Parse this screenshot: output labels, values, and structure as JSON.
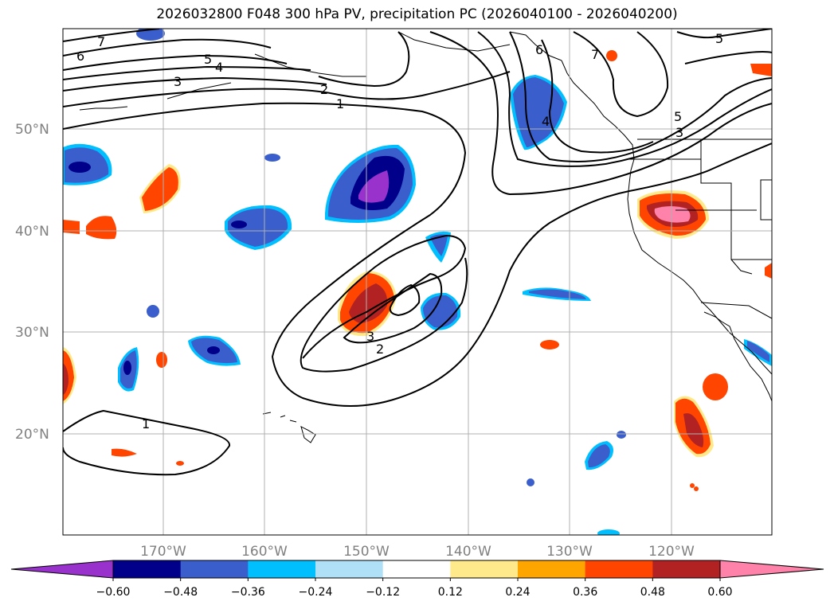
{
  "title": "2026032800 F048 300 hPa PV, precipitation PC (2026040100 - 2026040200)",
  "latitude_labels": [
    "50°N",
    "40°N",
    "30°N",
    "20°N"
  ],
  "longitude_labels": [
    "170°W",
    "160°W",
    "150°W",
    "140°W",
    "130°W",
    "120°W"
  ],
  "contour_labels": [
    "7",
    "6",
    "5",
    "4",
    "3",
    "2",
    "1",
    "5",
    "6",
    "7",
    "4",
    "5",
    "3",
    "3",
    "2",
    "1"
  ],
  "colorbar": {
    "tick_labels": [
      "−0.60",
      "−0.48",
      "−0.36",
      "−0.24",
      "−0.12",
      "0.12",
      "0.24",
      "0.36",
      "0.48",
      "0.60"
    ],
    "colors": [
      "#9932cc",
      "#00008b",
      "#3a5fcd",
      "#00bfff",
      "#afe0f8",
      "#ffffff",
      "#ffe98a",
      "#ffa500",
      "#ff4500",
      "#b22222",
      "#ff82ab"
    ]
  },
  "fill_colors": {
    "neg_purple": "#9932cc",
    "neg_navy": "#00008b",
    "neg_blue": "#3a5fcd",
    "neg_sky": "#00bfff",
    "neg_light": "#afe0f8",
    "pos_yellow": "#ffe98a",
    "pos_orange": "#ffa500",
    "pos_redorange": "#ff4500",
    "pos_firebrick": "#b22222",
    "pos_pink": "#ff82ab"
  }
}
